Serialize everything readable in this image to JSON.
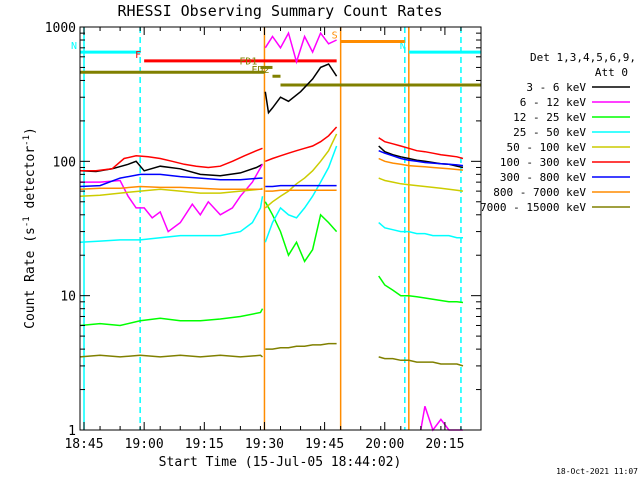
{
  "chart_data": {
    "type": "line",
    "title": "RHESSI Observing Summary Count Rates",
    "xlabel": "Start Time (15-Jul-05 18:44:02)",
    "ylabel_prefix": "Count Rate (s",
    "ylabel_sup": "-1",
    "ylabel_mid": " detector",
    "ylabel_suffix": ")",
    "y_scale": "log",
    "ylim": [
      1,
      1000
    ],
    "xlim_minutes": [
      0,
      100
    ],
    "x_ticks": [
      {
        "label": "18:45",
        "minute": 1
      },
      {
        "label": "19:00",
        "minute": 16
      },
      {
        "label": "19:15",
        "minute": 31
      },
      {
        "label": "19:30",
        "minute": 46
      },
      {
        "label": "19:45",
        "minute": 61
      },
      {
        "label": "20:00",
        "minute": 76
      },
      {
        "label": "20:15",
        "minute": 91
      }
    ],
    "y_ticks": [
      {
        "label": "1",
        "value": 1
      },
      {
        "label": "10",
        "value": 10
      },
      {
        "label": "100",
        "value": 100
      },
      {
        "label": "1000",
        "value": 1000
      }
    ],
    "legend_header": [
      "Det 1,3,4,5,6,9,",
      "Att 0"
    ],
    "legend_placement": "right",
    "series": [
      {
        "name": "3 - 6 keV",
        "color": "#000000",
        "segments": [
          {
            "x": [
              0,
              4,
              8,
              12,
              14,
              16,
              20,
              25,
              30,
              35,
              40,
              44,
              45.5
            ],
            "y": [
              85,
              84,
              88,
              95,
              100,
              85,
              92,
              88,
              80,
              78,
              82,
              90,
              95
            ]
          },
          {
            "x": [
              46.2,
              47,
              48,
              50,
              52,
              55,
              58,
              60,
              62,
              64
            ],
            "y": [
              330,
              230,
              250,
              300,
              280,
              330,
              410,
              500,
              530,
              430
            ]
          },
          {
            "x": [
              74.5,
              76,
              78,
              80,
              82,
              84,
              86,
              88,
              90,
              92,
              94,
              95.5
            ],
            "y": [
              130,
              118,
              112,
              108,
              105,
              102,
              100,
              98,
              96,
              95,
              92,
              90
            ]
          }
        ]
      },
      {
        "name": "6 - 12 keV",
        "color": "#ff00ff",
        "segments": [
          {
            "x": [
              0,
              5,
              10,
              12,
              14,
              16,
              18,
              20,
              22,
              25,
              28,
              30,
              32,
              35,
              38,
              40,
              43,
              45.5
            ],
            "y": [
              70,
              70,
              72,
              55,
              45,
              45,
              38,
              42,
              30,
              35,
              48,
              40,
              50,
              40,
              45,
              55,
              70,
              95
            ]
          },
          {
            "x": [
              46.2,
              48,
              50,
              52,
              54,
              56,
              58,
              60,
              62,
              64
            ],
            "y": [
              700,
              850,
              700,
              900,
              550,
              850,
              650,
              900,
              750,
              800
            ]
          },
          {
            "x": [
              85,
              86,
              88,
              90,
              92,
              94,
              95.5
            ],
            "y": [
              1,
              1.5,
              1,
              1.2,
              1,
              1,
              1
            ]
          }
        ]
      },
      {
        "name": "12 - 25 keV",
        "color": "#00ff00",
        "segments": [
          {
            "x": [
              0,
              5,
              10,
              15,
              20,
              25,
              30,
              35,
              40,
              45,
              45.5
            ],
            "y": [
              6,
              6.2,
              6,
              6.5,
              6.8,
              6.5,
              6.5,
              6.7,
              7,
              7.5,
              8
            ]
          },
          {
            "x": [
              46.2,
              48,
              50,
              52,
              54,
              56,
              58,
              60,
              62,
              64
            ],
            "y": [
              50,
              40,
              30,
              20,
              25,
              18,
              22,
              40,
              35,
              30
            ]
          },
          {
            "x": [
              74.5,
              76,
              78,
              80,
              82,
              84,
              86,
              88,
              90,
              92,
              94,
              95.5
            ],
            "y": [
              14,
              12,
              11,
              10,
              10,
              9.8,
              9.6,
              9.4,
              9.2,
              9,
              9,
              8.9
            ]
          }
        ]
      },
      {
        "name": "25 - 50 keV",
        "color": "#00ffff",
        "segments": [
          {
            "x": [
              0,
              5,
              10,
              15,
              20,
              25,
              30,
              35,
              40,
              43,
              45,
              45.5
            ],
            "y": [
              25,
              25.5,
              26,
              26,
              27,
              28,
              28,
              28,
              30,
              35,
              45,
              55
            ]
          },
          {
            "x": [
              46.2,
              48,
              50,
              52,
              54,
              56,
              58,
              60,
              62,
              64
            ],
            "y": [
              25,
              35,
              45,
              40,
              38,
              45,
              55,
              70,
              90,
              130
            ]
          },
          {
            "x": [
              74.5,
              76,
              78,
              80,
              82,
              84,
              86,
              88,
              90,
              92,
              94,
              95.5
            ],
            "y": [
              35,
              32,
              31,
              30,
              30,
              29,
              29,
              28,
              28,
              28,
              27,
              27
            ]
          }
        ]
      },
      {
        "name": "50 - 100 keV",
        "color": "#cccc00",
        "segments": [
          {
            "x": [
              0,
              5,
              10,
              15,
              20,
              25,
              30,
              35,
              40,
              45,
              45.5
            ],
            "y": [
              55,
              56,
              58,
              60,
              62,
              60,
              58,
              58,
              60,
              62,
              63
            ]
          },
          {
            "x": [
              46.2,
              48,
              50,
              52,
              54,
              56,
              58,
              60,
              62,
              64
            ],
            "y": [
              45,
              50,
              55,
              60,
              68,
              75,
              85,
              100,
              120,
              160
            ]
          },
          {
            "x": [
              74.5,
              76,
              78,
              80,
              82,
              84,
              86,
              88,
              90,
              92,
              94,
              95.5
            ],
            "y": [
              75,
              72,
              70,
              68,
              67,
              66,
              65,
              64,
              63,
              62,
              61,
              60
            ]
          }
        ]
      },
      {
        "name": "100 - 300 keV",
        "color": "#ff0000",
        "segments": [
          {
            "x": [
              0,
              4,
              8,
              11,
              14,
              17,
              20,
              23,
              26,
              29,
              32,
              35,
              38,
              41,
              44,
              45.5
            ],
            "y": [
              85,
              85,
              88,
              105,
              110,
              108,
              105,
              100,
              95,
              92,
              90,
              92,
              100,
              110,
              120,
              125
            ]
          },
          {
            "x": [
              46.2,
              48,
              50,
              52,
              54,
              56,
              58,
              60,
              62,
              64
            ],
            "y": [
              100,
              105,
              110,
              115,
              120,
              125,
              130,
              140,
              155,
              180
            ]
          },
          {
            "x": [
              74.5,
              76,
              78,
              80,
              82,
              84,
              86,
              88,
              90,
              92,
              94,
              95.5
            ],
            "y": [
              150,
              140,
              135,
              130,
              125,
              120,
              118,
              115,
              112,
              110,
              108,
              105
            ]
          }
        ]
      },
      {
        "name": "300 - 800 keV",
        "color": "#0000ff",
        "segments": [
          {
            "x": [
              0,
              5,
              10,
              15,
              20,
              25,
              30,
              35,
              40,
              45,
              45.5
            ],
            "y": [
              65,
              66,
              75,
              80,
              80,
              77,
              75,
              73,
              73,
              75,
              75
            ]
          },
          {
            "x": [
              46.2,
              48,
              50,
              52,
              54,
              56,
              58,
              60,
              62,
              64
            ],
            "y": [
              65,
              65,
              66,
              66,
              66,
              66,
              66,
              66,
              66,
              66
            ]
          },
          {
            "x": [
              74.5,
              76,
              78,
              80,
              82,
              84,
              86,
              88,
              90,
              92,
              94,
              95.5
            ],
            "y": [
              120,
              115,
              110,
              105,
              102,
              100,
              98,
              97,
              96,
              95,
              94,
              93
            ]
          }
        ]
      },
      {
        "name": "800 - 7000 keV",
        "color": "#ff8c00",
        "segments": [
          {
            "x": [
              0,
              5,
              10,
              15,
              20,
              25,
              30,
              35,
              40,
              45,
              45.5
            ],
            "y": [
              62,
              63,
              63,
              65,
              64,
              64,
              63,
              62,
              62,
              62,
              62
            ]
          },
          {
            "x": [
              46.2,
              48,
              50,
              52,
              54,
              56,
              58,
              60,
              62,
              64
            ],
            "y": [
              60,
              60,
              61,
              61,
              61,
              61,
              61,
              61,
              61,
              61
            ]
          },
          {
            "x": [
              74.5,
              76,
              78,
              80,
              82,
              84,
              86,
              88,
              90,
              92,
              94,
              95.5
            ],
            "y": [
              105,
              100,
              97,
              95,
              93,
              92,
              91,
              90,
              89,
              88,
              87,
              86
            ]
          }
        ]
      },
      {
        "name": "7000 - 15000 keV",
        "color": "#808000",
        "segments": [
          {
            "x": [
              0,
              5,
              10,
              15,
              20,
              25,
              30,
              35,
              40,
              45,
              45.5
            ],
            "y": [
              3.5,
              3.6,
              3.5,
              3.6,
              3.5,
              3.6,
              3.5,
              3.6,
              3.5,
              3.6,
              3.5
            ]
          },
          {
            "x": [
              46.2,
              48,
              50,
              52,
              54,
              56,
              58,
              60,
              62,
              64
            ],
            "y": [
              4,
              4,
              4.1,
              4.1,
              4.2,
              4.2,
              4.3,
              4.3,
              4.4,
              4.4
            ]
          },
          {
            "x": [
              74.5,
              76,
              78,
              80,
              82,
              84,
              86,
              88,
              90,
              92,
              94,
              95.5
            ],
            "y": [
              3.5,
              3.4,
              3.4,
              3.3,
              3.3,
              3.2,
              3.2,
              3.2,
              3.1,
              3.1,
              3.1,
              3
            ]
          }
        ]
      }
    ],
    "flag_bars": [
      {
        "label": "N",
        "color": "#00ffff",
        "x": [
          0,
          15
        ],
        "y": 650
      },
      {
        "label": "N",
        "color": "#00ffff",
        "x": [
          82,
          100
        ],
        "y": 650
      },
      {
        "label": "F",
        "color": "#ff0000",
        "x": [
          16,
          64
        ],
        "y": 560
      },
      {
        "label": "S",
        "color": "#ff8c00",
        "x": [
          65,
          81
        ],
        "y": 780
      },
      {
        "label": "FD1",
        "color": "#808000",
        "x": [
          45,
          48
        ],
        "y": 500
      },
      {
        "label": "FD2",
        "color": "#808000",
        "x": [
          48,
          50
        ],
        "y": 430
      },
      {
        "label": "",
        "color": "#808000",
        "x": [
          0,
          46
        ],
        "y": 460
      },
      {
        "label": "",
        "color": "#808000",
        "x": [
          50,
          100
        ],
        "y": 370
      }
    ],
    "vertical_lines": [
      {
        "minute": 1,
        "color": "#00ffff",
        "dashed": false
      },
      {
        "minute": 15,
        "color": "#00ffff",
        "dashed": true
      },
      {
        "minute": 46,
        "color": "#ff8c00",
        "dashed": false
      },
      {
        "minute": 65,
        "color": "#ff8c00",
        "dashed": false
      },
      {
        "minute": 81,
        "color": "#00ffff",
        "dashed": true
      },
      {
        "minute": 82,
        "color": "#ff8c00",
        "dashed": false
      },
      {
        "minute": 95,
        "color": "#00ffff",
        "dashed": true
      }
    ],
    "grid": false
  },
  "timestamp": "18-Oct-2021 11:07"
}
